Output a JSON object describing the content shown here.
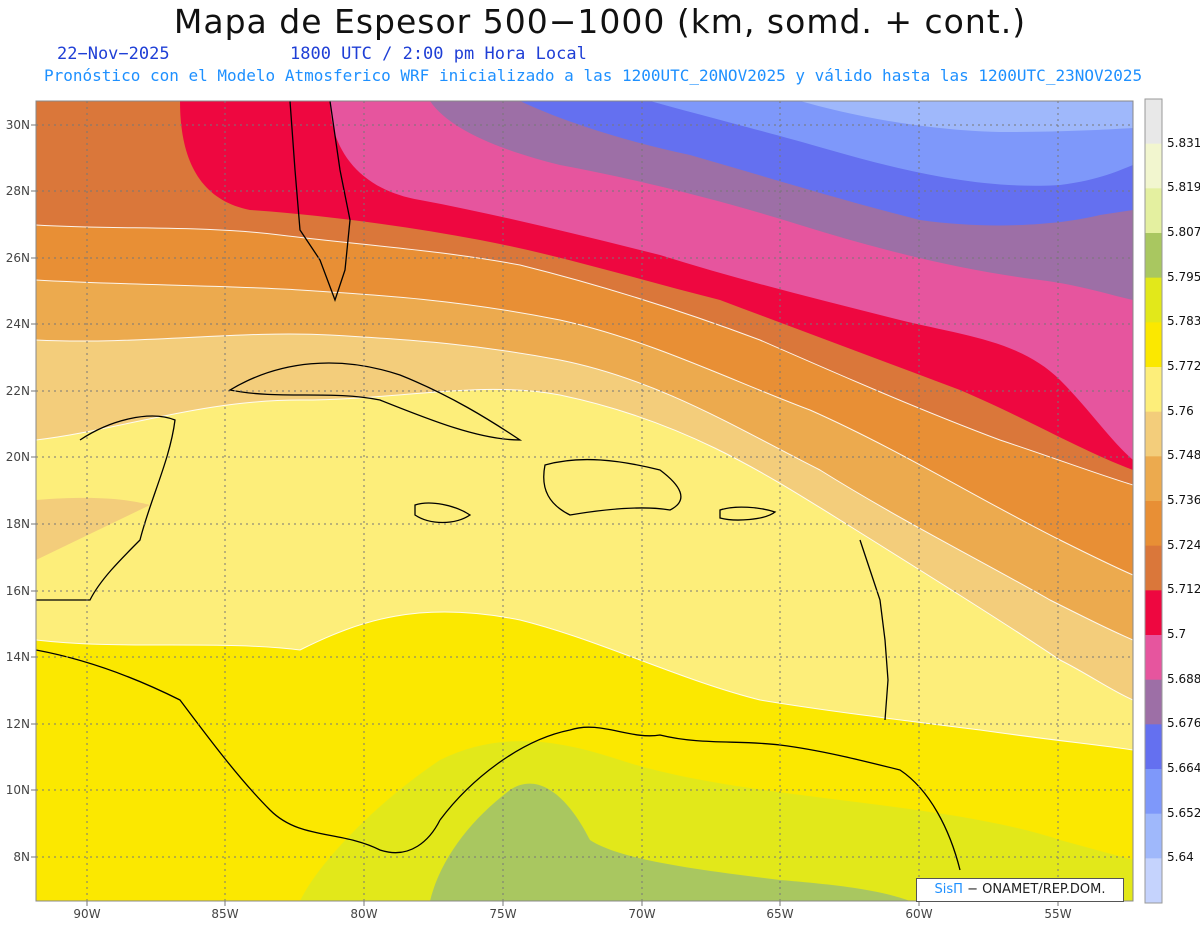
{
  "header": {
    "title": "Mapa de Espesor 500−1000 (km, somd. + cont.)",
    "date": "22−Nov−2025",
    "time": "1800 UTC / 2:00 pm Hora Local",
    "subtitle": "Pronóstico con el Modelo Atmosferico WRF inicializado a las 1200UTC_20NOV2025 y válido hasta las  1200UTC_23NOV2025"
  },
  "axes": {
    "lat_labels": [
      "30N",
      "28N",
      "26N",
      "24N",
      "22N",
      "20N",
      "18N",
      "16N",
      "14N",
      "12N",
      "10N",
      "8N"
    ],
    "lon_labels": [
      "90W",
      "85W",
      "80W",
      "75W",
      "70W",
      "65W",
      "60W",
      "55W"
    ]
  },
  "colorbar": {
    "levels": [
      "5.831",
      "5.819",
      "5.807",
      "5.795",
      "5.783",
      "5.772",
      "5.76",
      "5.748",
      "5.736",
      "5.724",
      "5.712",
      "5.7",
      "5.688",
      "5.676",
      "5.664",
      "5.652",
      "5.64"
    ],
    "colors": [
      "#e8e8e8",
      "#f2f6cf",
      "#e4f0a0",
      "#a9c760",
      "#e2e81a",
      "#fbe800",
      "#fdee7a",
      "#f3cd7b",
      "#ecaa4e",
      "#e88f35",
      "#da773a",
      "#ee0740",
      "#e6559e",
      "#9d6fa6",
      "#6470f0",
      "#7e98fa",
      "#9fb8fb",
      "#c5d3fd"
    ]
  },
  "credit": {
    "brand": "SisΠ",
    "text": "− ONAMET/REP.DOM."
  },
  "map_labels": []
}
